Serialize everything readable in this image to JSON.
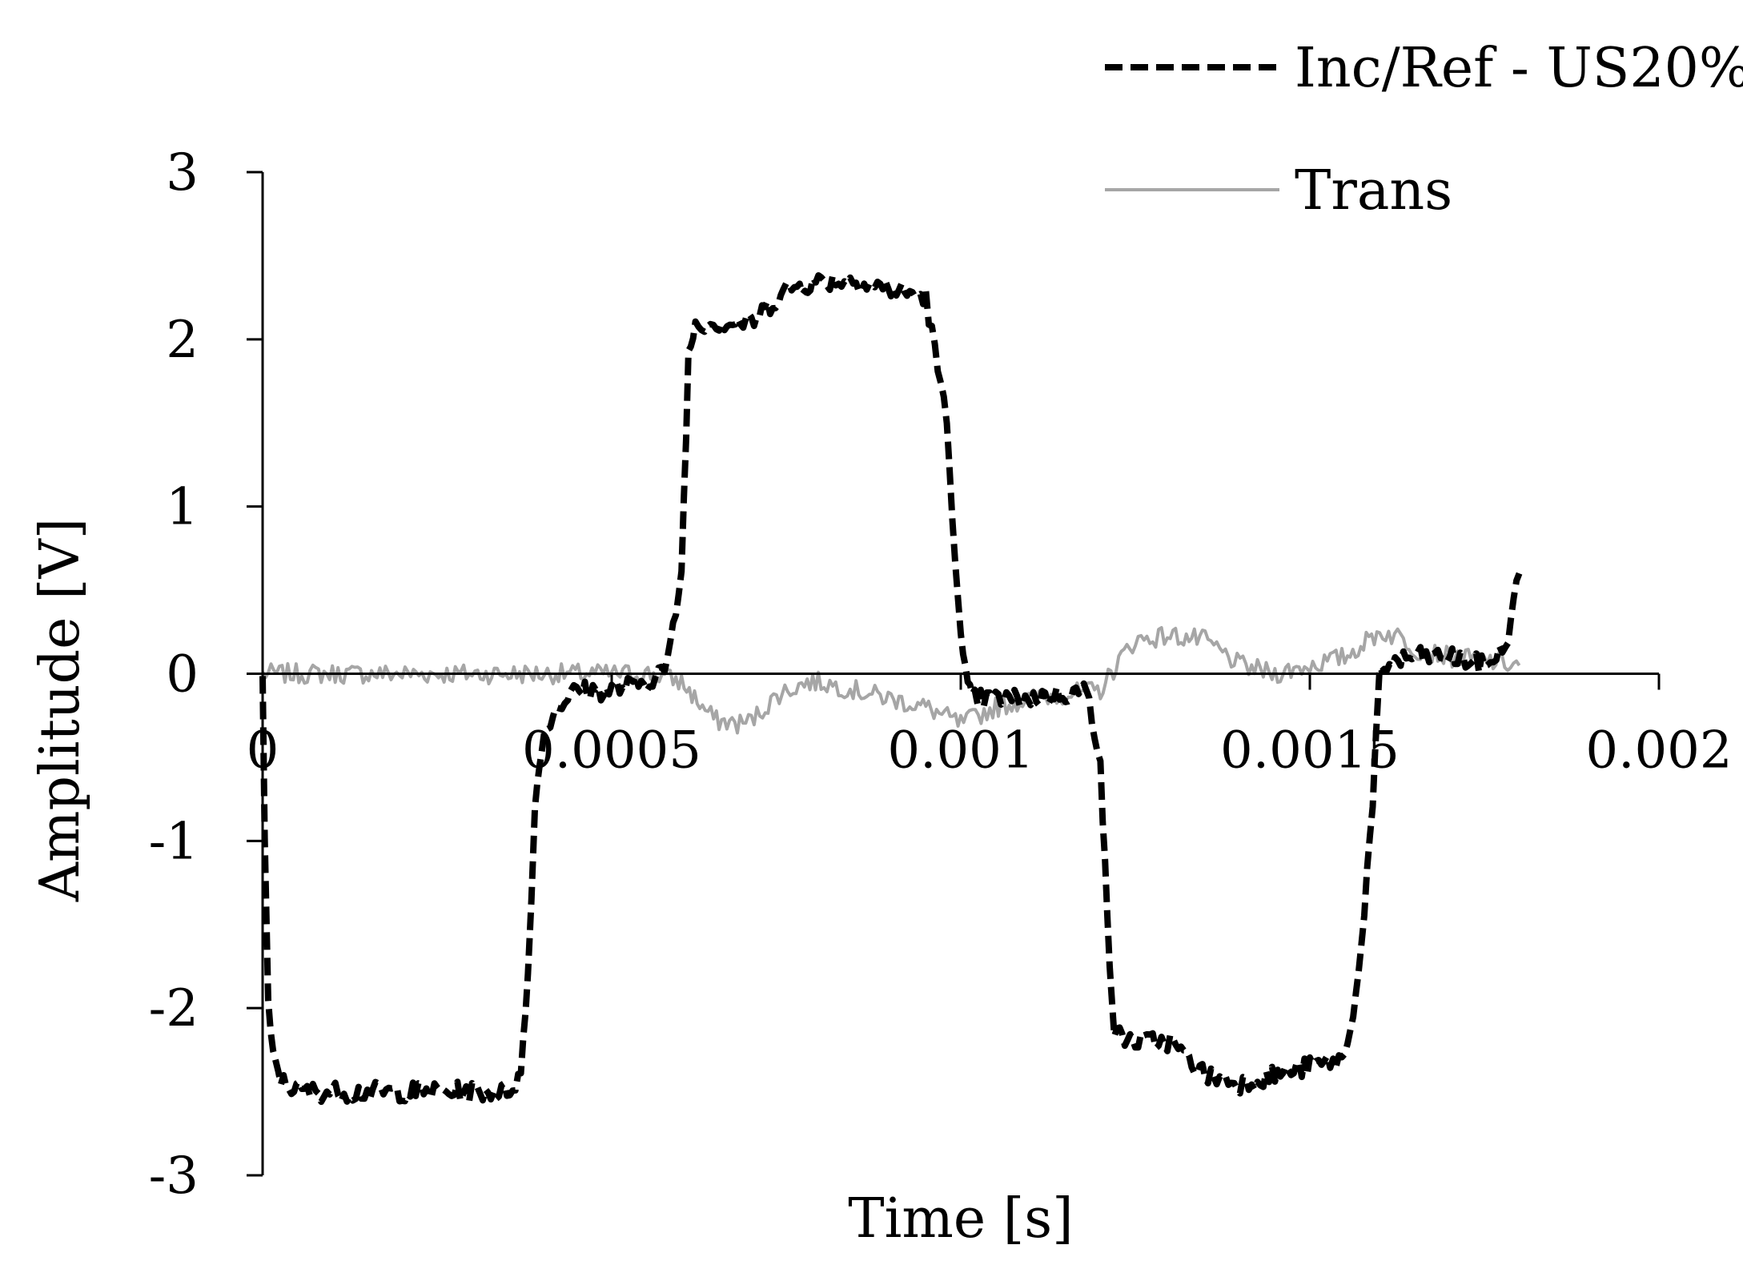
{
  "chart_data": {
    "type": "line",
    "title": "",
    "xlabel": "Time [s]",
    "ylabel": "Amplitude [V]",
    "xlim": [
      0,
      0.002
    ],
    "ylim": [
      -3,
      3
    ],
    "x_ticks": [
      0,
      0.0005,
      0.001,
      0.0015,
      0.002
    ],
    "x_tick_labels": [
      "0",
      "0.0005",
      "0.001",
      "0.0015",
      "0.002"
    ],
    "y_ticks": [
      -3,
      -2,
      -1,
      0,
      1,
      2,
      3
    ],
    "y_tick_labels": [
      "-3",
      "-2",
      "-1",
      "0",
      "1",
      "2",
      "3"
    ],
    "grid": false,
    "legend_position": "top-right",
    "series": [
      {
        "name": "Inc/Ref - US20%",
        "color": "#000000",
        "style": "dashed",
        "x": [
          0,
          3e-06,
          8e-06,
          1.5e-05,
          3e-05,
          6e-05,
          0.0001,
          0.00015,
          0.0002,
          0.00025,
          0.0003,
          0.00035,
          0.00037,
          0.00038,
          0.00039,
          0.0004,
          0.00042,
          0.00045,
          0.0005,
          0.00055,
          0.00058,
          0.0006,
          0.00061,
          0.00062,
          0.00065,
          0.0007,
          0.00075,
          0.0008,
          0.00085,
          0.0009,
          0.00095,
          0.00098,
          0.001,
          0.00101,
          0.00102,
          0.00105,
          0.0011,
          0.00115,
          0.00118,
          0.0012,
          0.00121,
          0.00122,
          0.00125,
          0.0013,
          0.00135,
          0.0014,
          0.00145,
          0.0015,
          0.00155,
          0.00157,
          0.00159,
          0.0016,
          0.00161,
          0.00163,
          0.00165,
          0.0017,
          0.00175,
          0.00178,
          0.0018
        ],
        "y": [
          0,
          -1.0,
          -2.0,
          -2.3,
          -2.45,
          -2.5,
          -2.5,
          -2.5,
          -2.5,
          -2.5,
          -2.5,
          -2.5,
          -2.4,
          -1.8,
          -0.8,
          -0.4,
          -0.2,
          -0.1,
          -0.1,
          -0.05,
          0.05,
          0.6,
          1.9,
          2.1,
          2.1,
          2.1,
          2.3,
          2.35,
          2.35,
          2.3,
          2.25,
          1.5,
          0.2,
          -0.1,
          -0.15,
          -0.15,
          -0.15,
          -0.12,
          -0.1,
          -0.5,
          -1.5,
          -2.15,
          -2.2,
          -2.2,
          -2.4,
          -2.45,
          -2.4,
          -2.35,
          -2.3,
          -1.8,
          -0.8,
          0.0,
          0.05,
          0.08,
          0.1,
          0.1,
          0.05,
          0.15,
          0.6
        ]
      },
      {
        "name": "Trans",
        "color": "#a6a6a6",
        "style": "solid",
        "x": [
          0,
          0.0001,
          0.0002,
          0.0003,
          0.0004,
          0.0005,
          0.00056,
          0.0006,
          0.00063,
          0.00065,
          0.00068,
          0.0007,
          0.00074,
          0.00078,
          0.0008,
          0.00085,
          0.0009,
          0.00095,
          0.001,
          0.00105,
          0.0011,
          0.00115,
          0.0012,
          0.00123,
          0.00125,
          0.0013,
          0.00135,
          0.0014,
          0.00145,
          0.0015,
          0.00155,
          0.0016,
          0.00163,
          0.00165,
          0.0017,
          0.00175,
          0.0018
        ],
        "y": [
          0,
          0,
          0,
          0,
          0,
          0,
          0,
          -0.05,
          -0.2,
          -0.28,
          -0.3,
          -0.28,
          -0.12,
          -0.05,
          -0.05,
          -0.1,
          -0.15,
          -0.2,
          -0.3,
          -0.2,
          -0.15,
          -0.12,
          -0.1,
          0.1,
          0.2,
          0.23,
          0.2,
          0.05,
          0.0,
          0.05,
          0.1,
          0.25,
          0.22,
          0.15,
          0.1,
          0.08,
          0.05
        ]
      }
    ]
  }
}
